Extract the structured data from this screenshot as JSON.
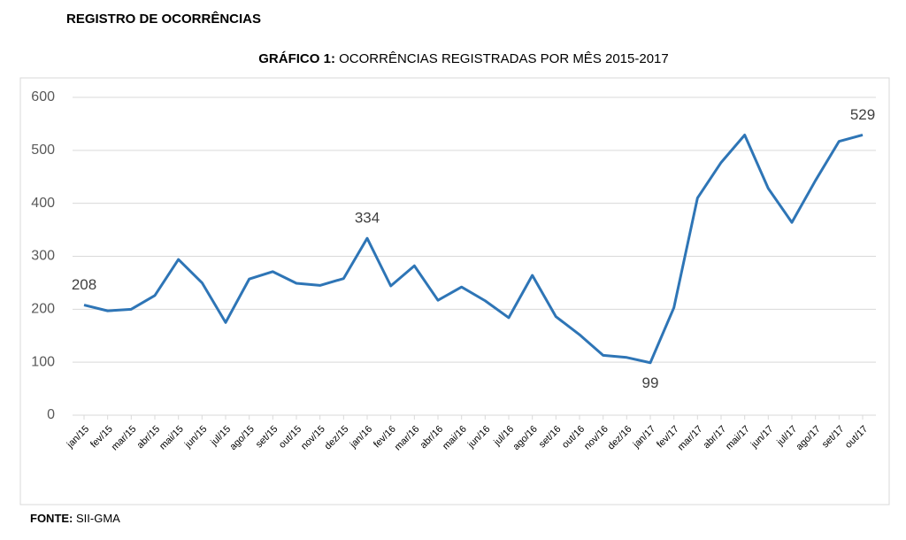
{
  "header": "REGISTRO DE OCORRÊNCIAS",
  "chart_data": {
    "type": "line",
    "title_label": "GRÁFICO 1:",
    "title": "OCORRÊNCIAS REGISTRADAS POR MÊS 2015-2017",
    "categories": [
      "jan/15",
      "fev/15",
      "mar/15",
      "abr/15",
      "mai/15",
      "jun/15",
      "jul/15",
      "ago/15",
      "set/15",
      "out/15",
      "nov/15",
      "dez/15",
      "jan/16",
      "fev/16",
      "mar/16",
      "abr/16",
      "mai/16",
      "jun/16",
      "jul/16",
      "ago/16",
      "set/16",
      "out/16",
      "nov/16",
      "dez/16",
      "jan/17",
      "fev/17",
      "mar/17",
      "abr/17",
      "mai/17",
      "jun/17",
      "jul/17",
      "ago/17",
      "set/17",
      "out/17"
    ],
    "series": [
      {
        "color": "#2e75b6",
        "values": [
          208,
          197,
          200,
          226,
          294,
          250,
          175,
          257,
          271,
          249,
          245,
          258,
          334,
          244,
          282,
          217,
          242,
          216,
          184,
          264,
          186,
          152,
          113,
          109,
          99,
          203,
          410,
          477,
          529,
          428,
          364,
          443,
          517,
          529
        ],
        "value_labels": [
          "208",
          null,
          null,
          null,
          null,
          null,
          null,
          null,
          null,
          null,
          null,
          null,
          "334",
          null,
          null,
          null,
          null,
          null,
          null,
          null,
          null,
          null,
          null,
          null,
          "99",
          null,
          null,
          null,
          null,
          null,
          null,
          null,
          null,
          "529"
        ]
      }
    ],
    "ylim": [
      0,
      600
    ],
    "yticks": [
      0,
      100,
      200,
      300,
      400,
      500,
      600
    ],
    "grid": true
  },
  "source": {
    "label": "FONTE:",
    "text": "SII-GMA"
  }
}
